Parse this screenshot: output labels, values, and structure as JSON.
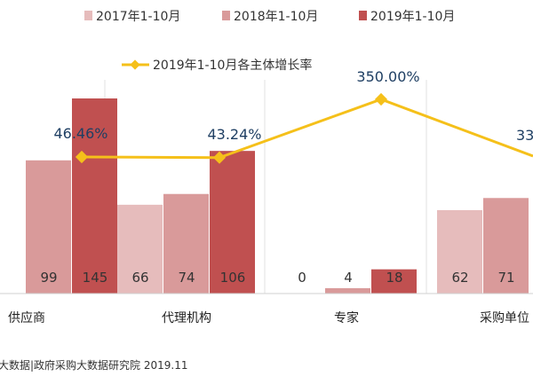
{
  "chart_data": {
    "type": "bar",
    "categories": [
      "供应商",
      "代理机构",
      "专家",
      "采购单位"
    ],
    "series": [
      {
        "name": "2017年1-10月",
        "color": "#e6bcbc",
        "values": [
          null,
          66,
          0,
          62
        ]
      },
      {
        "name": "2018年1-10月",
        "color": "#d99a9a",
        "values": [
          99,
          74,
          4,
          71
        ]
      },
      {
        "name": "2019年1-10月",
        "color": "#c05050",
        "values": [
          145,
          106,
          18,
          null
        ]
      }
    ],
    "line_series": {
      "name": "2019年1-10月各主体增长率",
      "color": "#f5c01a",
      "values": [
        46.46,
        43.24,
        350.0,
        null
      ],
      "labels": [
        "46.46%",
        "43.24%",
        "350.00%",
        "33"
      ]
    },
    "ylim": [
      0,
      160
    ],
    "line_ylim": [
      0,
      400
    ],
    "legend": "top",
    "grid": false
  },
  "source": "大数据|政府采购大数据研究院 2019.11"
}
